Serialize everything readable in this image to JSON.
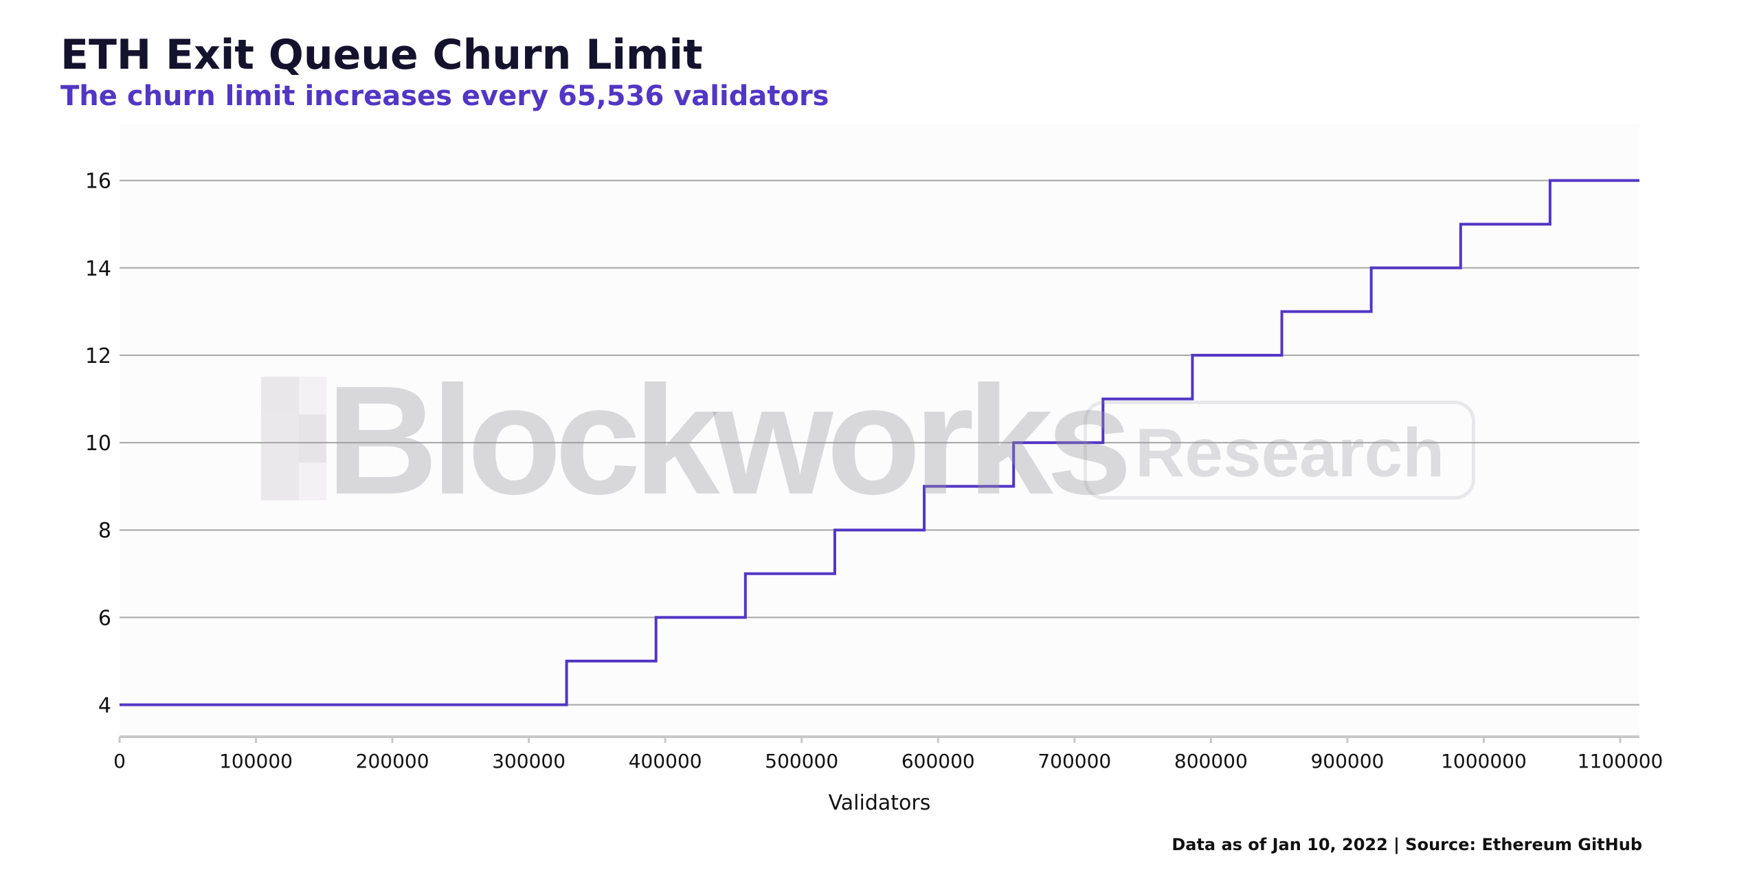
{
  "header": {
    "title": "ETH Exit Queue Churn Limit",
    "subtitle": "The churn limit increases every 65,536 validators"
  },
  "watermark": {
    "brand": "Blockworks",
    "badge": "Research"
  },
  "footer": {
    "source": "Data as of Jan 10, 2022 | Source: Ethereum GitHub"
  },
  "colors": {
    "title": "#15122e",
    "subtitle": "#5236c4",
    "line": "#5236c4",
    "grid": "#a6a6a6",
    "axis": "#c8c8c8",
    "plot_background": "#fdfcfd"
  },
  "chart_data": {
    "type": "line",
    "step": true,
    "title": "ETH Exit Queue Churn Limit",
    "subtitle": "The churn limit increases every 65,536 validators",
    "xlabel": "Validators",
    "ylabel": "",
    "xlim": [
      0,
      1114112
    ],
    "ylim": [
      3.3,
      17.3
    ],
    "x_ticks": [
      0,
      100000,
      200000,
      300000,
      400000,
      500000,
      600000,
      700000,
      800000,
      900000,
      1000000,
      1100000
    ],
    "y_ticks": [
      4,
      6,
      8,
      10,
      12,
      14,
      16
    ],
    "grid": true,
    "legend": "none",
    "series": [
      {
        "x": [
          0,
          327680,
          393216,
          458752,
          524288,
          589824,
          655360,
          720896,
          786432,
          851968,
          917504,
          983040,
          1048576,
          1114112
        ],
        "y": [
          4,
          5,
          6,
          7,
          8,
          9,
          10,
          11,
          12,
          13,
          14,
          15,
          16,
          16
        ]
      }
    ]
  }
}
